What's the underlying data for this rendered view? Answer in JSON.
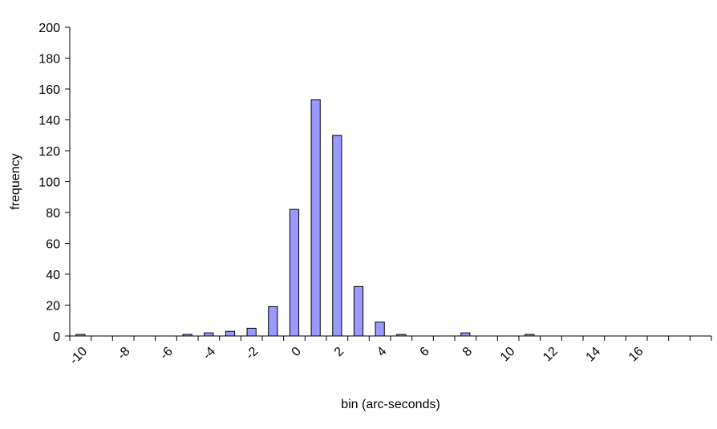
{
  "chart_data": {
    "type": "bar",
    "xlabel": "bin (arc-seconds)",
    "ylabel": "frequency",
    "ylim": [
      0,
      200
    ],
    "yticks": [
      0,
      20,
      40,
      60,
      80,
      100,
      120,
      140,
      160,
      180,
      200
    ],
    "xtick_labels": [
      "-10",
      "-8",
      "-6",
      "-4",
      "-2",
      "0",
      "2",
      "4",
      "6",
      "8",
      "10",
      "12",
      "14",
      "16"
    ],
    "grid": false,
    "legend": "none",
    "bar_color": "#9999ff",
    "bar_stroke": "#000000",
    "categories": [
      "-10",
      "-9",
      "-8",
      "-7",
      "-6",
      "-5",
      "-4",
      "-3",
      "-2",
      "-1",
      "0",
      "1",
      "2",
      "3",
      "4",
      "5",
      "6",
      "7",
      "8",
      "9",
      "10",
      "11",
      "12",
      "13",
      "14",
      "15",
      "16",
      "17",
      "18",
      "19"
    ],
    "values": [
      1,
      0,
      0,
      0,
      0,
      1,
      2,
      3,
      5,
      19,
      82,
      153,
      130,
      32,
      9,
      1,
      0,
      0,
      2,
      0,
      0,
      1,
      0,
      0,
      0,
      0,
      0,
      0,
      0,
      0
    ]
  }
}
